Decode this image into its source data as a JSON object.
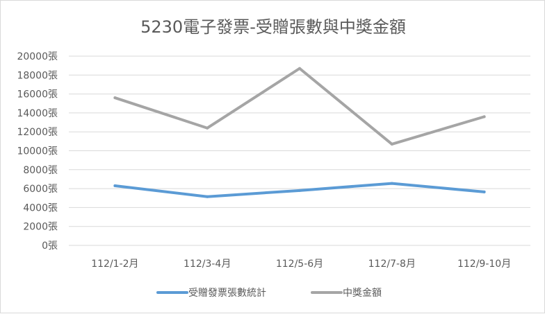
{
  "chart_data": {
    "type": "line",
    "title": "5230電子發票-受贈張數與中獎金額",
    "categories": [
      "112/1-2月",
      "112/3-4月",
      "112/5-6月",
      "112/7-8月",
      "112/9-10月"
    ],
    "ylim": [
      0,
      20000
    ],
    "y_ticks": [
      "0張",
      "2000張",
      "4000張",
      "6000張",
      "8000張",
      "10000張",
      "12000張",
      "14000張",
      "16000張",
      "18000張",
      "20000張"
    ],
    "grid": true,
    "legend_position": "bottom",
    "series": [
      {
        "name": "受贈發票張數統計",
        "color": "#5b9bd5",
        "values": [
          6300,
          5150,
          5800,
          6550,
          5650
        ]
      },
      {
        "name": "中獎金額",
        "color": "#a5a5a5",
        "values": [
          15600,
          12400,
          18700,
          10700,
          13600
        ]
      }
    ]
  }
}
